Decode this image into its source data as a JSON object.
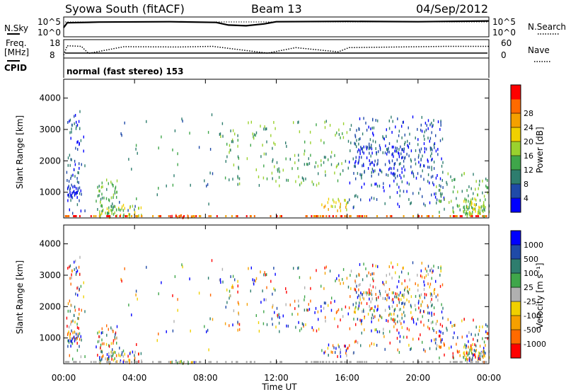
{
  "header": {
    "station": "Syowa South (fitACF)",
    "beam": "Beam 13",
    "date": "04/Sep/2012"
  },
  "status": {
    "nsky_label": "N.Sky",
    "nsky_ticks": [
      "10^5",
      "10^0"
    ],
    "nsearch_label": "N.Search",
    "nsearch_ticks": [
      "10^5",
      "10^0"
    ],
    "freq_label": "Freq.",
    "freq_unit": "[MHz]",
    "freq_ticks": [
      "18",
      "8"
    ],
    "nave_label": "Nave",
    "nave_ticks": [
      "60",
      "0"
    ],
    "cpid_label": "CPID",
    "cpid_text": "normal (fast stereo) 153"
  },
  "axes": {
    "x_ticks": [
      "00:00",
      "04:00",
      "08:00",
      "12:00",
      "16:00",
      "20:00",
      "00:00"
    ],
    "x_label": "Time UT",
    "y_ticks": [
      "1000",
      "2000",
      "3000",
      "4000"
    ],
    "y_label": "Slant Range [km]"
  },
  "colorbars": {
    "power": {
      "label": "Power [dB]",
      "ticks": [
        "4",
        "8",
        "12",
        "16",
        "20",
        "24",
        "28"
      ],
      "colors": [
        "#0000ff",
        "#1f4aa8",
        "#2e7d6e",
        "#3fa64a",
        "#9ad12e",
        "#f0d000",
        "#f5a000",
        "#ff6a00",
        "#ff0000"
      ]
    },
    "velocity": {
      "label": "Velocity [m s⁻¹]",
      "ticks": [
        "1000",
        "500",
        "100",
        "25",
        "-25",
        "-100",
        "-500",
        "-1000"
      ],
      "colors": [
        "#0000ff",
        "#1f4aa8",
        "#2e7d6e",
        "#3fa64a",
        "#b0b0b0",
        "#f0d000",
        "#f5a000",
        "#ff6a00",
        "#ff0000"
      ]
    }
  },
  "chart_data": [
    {
      "type": "line",
      "x": [
        0,
        0.2,
        2,
        6,
        8.6,
        9.3,
        10.3,
        11.3,
        12,
        16,
        20,
        24
      ],
      "series": [
        {
          "name": "N.Sky",
          "values": [
            2.5,
            3.8,
            4.0,
            4.1,
            3.9,
            3.2,
            3.0,
            3.5,
            4.1,
            4.2,
            4.1,
            4.3
          ]
        }
      ],
      "ylim": [
        0,
        5
      ]
    },
    {
      "type": "line",
      "x": [
        0,
        0.2,
        1.0,
        1.4,
        3.4,
        6.5,
        8.4,
        11.5,
        13.1,
        15.5,
        16.1,
        21.6,
        24
      ],
      "series": [
        {
          "name": "Nave",
          "values": [
            10,
            40,
            38,
            15,
            37,
            36,
            38,
            16,
            34,
            20,
            34,
            38,
            38
          ]
        }
      ],
      "ylim": [
        0,
        60
      ]
    },
    {
      "type": "heatmap",
      "x_range_hours": [
        0,
        24
      ],
      "ylim": [
        180,
        4600
      ],
      "panel": "power"
    },
    {
      "type": "heatmap",
      "x_range_hours": [
        0,
        24
      ],
      "ylim": [
        180,
        4600
      ],
      "panel": "velocity"
    }
  ]
}
